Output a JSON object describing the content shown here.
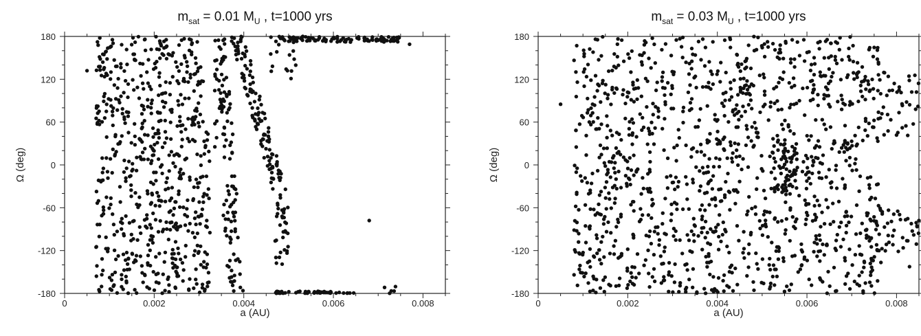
{
  "chart_data": [
    {
      "type": "scatter",
      "title": {
        "main": "m",
        "sub": "sat",
        "mid": " = 0.01 M",
        "sub2": "U",
        "tail": " , t=1000 yrs"
      },
      "xlabel": "a (AU)",
      "ylabel": "Ω (deg)",
      "xlim": [
        0,
        0.0085
      ],
      "ylim": [
        -180,
        180
      ],
      "xticks": [
        0,
        0.002,
        0.004,
        0.006,
        0.008
      ],
      "xtick_labels": [
        "0",
        "0.002",
        "0.004",
        "0.006",
        "0.008"
      ],
      "yticks": [
        180,
        120,
        60,
        0,
        -60,
        -120,
        -180
      ],
      "ytick_labels": [
        "180",
        "120",
        "60",
        "0",
        "-60",
        "-120",
        "-180"
      ],
      "grid": false,
      "marker_color": "#111111",
      "regions": [
        {
          "kind": "band",
          "x": [
            0.0007,
            0.0031
          ],
          "y": [
            -180,
            180
          ],
          "n": 620
        },
        {
          "kind": "band",
          "x": [
            0.0031,
            0.00325
          ],
          "y": [
            -180,
            60
          ],
          "n": 30
        },
        {
          "kind": "band",
          "x": [
            0.00335,
            0.0034
          ],
          "y": [
            20,
            180
          ],
          "n": 12
        },
        {
          "kind": "diag",
          "y": [
            -180,
            180
          ],
          "x_at_ymin": [
            0.0036,
            0.004
          ],
          "x_at_ymax": [
            0.0034,
            0.0036
          ],
          "n": 110
        },
        {
          "kind": "diag",
          "y": [
            -70,
            180
          ],
          "x_at_ymin": [
            0.0048,
            0.0051
          ],
          "x_at_ymax": [
            0.0037,
            0.004
          ],
          "n": 130
        },
        {
          "kind": "band",
          "x": [
            0.0047,
            0.005
          ],
          "y": [
            -140,
            -60
          ],
          "n": 25
        },
        {
          "kind": "band",
          "x": [
            0.0046,
            0.0075
          ],
          "y": [
            172,
            180
          ],
          "n": 110
        },
        {
          "kind": "band",
          "x": [
            0.0046,
            0.0052
          ],
          "y": [
            120,
            172
          ],
          "n": 14
        },
        {
          "kind": "band",
          "x": [
            0.0047,
            0.0065
          ],
          "y": [
            -180,
            -177
          ],
          "n": 50
        },
        {
          "kind": "band",
          "x": [
            0.007,
            0.0074
          ],
          "y": [
            -180,
            -170
          ],
          "n": 5
        }
      ],
      "points": [
        [
          0.0005,
          132
        ],
        [
          0.0077,
          169
        ],
        [
          0.0068,
          -78
        ]
      ]
    },
    {
      "type": "scatter",
      "title": {
        "main": "m",
        "sub": "sat",
        "mid": " = 0.03 M",
        "sub2": "U",
        "tail": " , t=1000 yrs"
      },
      "xlabel": "a (AU)",
      "ylabel": "Ω (deg)",
      "xlim": [
        0,
        0.0085
      ],
      "ylim": [
        -180,
        180
      ],
      "xticks": [
        0,
        0.002,
        0.004,
        0.006,
        0.008
      ],
      "xtick_labels": [
        "0",
        "0.002",
        "0.004",
        "0.006",
        "0.008"
      ],
      "yticks": [
        180,
        120,
        60,
        0,
        -60,
        -120,
        -180
      ],
      "ytick_labels": [
        "180",
        "120",
        "60",
        "0",
        "-60",
        "-120",
        "-180"
      ],
      "grid": false,
      "marker_color": "#111111",
      "regions": [
        {
          "kind": "band",
          "x": [
            0.0008,
            0.0076
          ],
          "y": [
            -180,
            180
          ],
          "n": 1250
        },
        {
          "kind": "band",
          "x": [
            0.0072,
            0.0085
          ],
          "y": [
            40,
            130
          ],
          "n": 50
        },
        {
          "kind": "band",
          "x": [
            0.0072,
            0.0085
          ],
          "y": [
            -150,
            -60
          ],
          "n": 60
        },
        {
          "kind": "band",
          "x": [
            0.0052,
            0.0058
          ],
          "y": [
            -40,
            30
          ],
          "n": 60
        }
      ],
      "points": [
        [
          0.0005,
          85
        ],
        [
          0.0009,
          -108
        ],
        [
          0.0085,
          -78
        ]
      ]
    }
  ]
}
